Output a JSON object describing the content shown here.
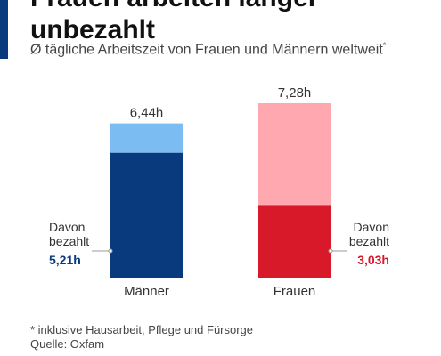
{
  "header": {
    "title_line1": "Frauen arbeiten länger",
    "title_line2": "unbezahlt",
    "subtitle": "Ø tägliche Arbeitszeit von Frauen und Männern weltweit",
    "subtitle_marker": "*"
  },
  "footer": {
    "note": "* inklusive Hausarbeit, Pflege und Fürsorge",
    "source": "Quelle: Oxfam"
  },
  "colors": {
    "men_total": "#7bbcf2",
    "men_paid": "#0a3a7e",
    "women_total": "#ffa8b0",
    "women_paid": "#d7192a",
    "accent": "#0a3a7e"
  },
  "chart_data": {
    "type": "bar",
    "stacked": true,
    "categories": [
      "Männer",
      "Frauen"
    ],
    "total_values": [
      6.44,
      7.28
    ],
    "paid_values": [
      5.21,
      3.03
    ],
    "total_labels": [
      "6,44h",
      "7,28h"
    ],
    "paid_caption_line1": "Davon",
    "paid_caption_line2": "bezahlt",
    "paid_labels": [
      "5,21h",
      "3,03h"
    ],
    "ylim": [
      0,
      7.28
    ],
    "grid": false
  }
}
